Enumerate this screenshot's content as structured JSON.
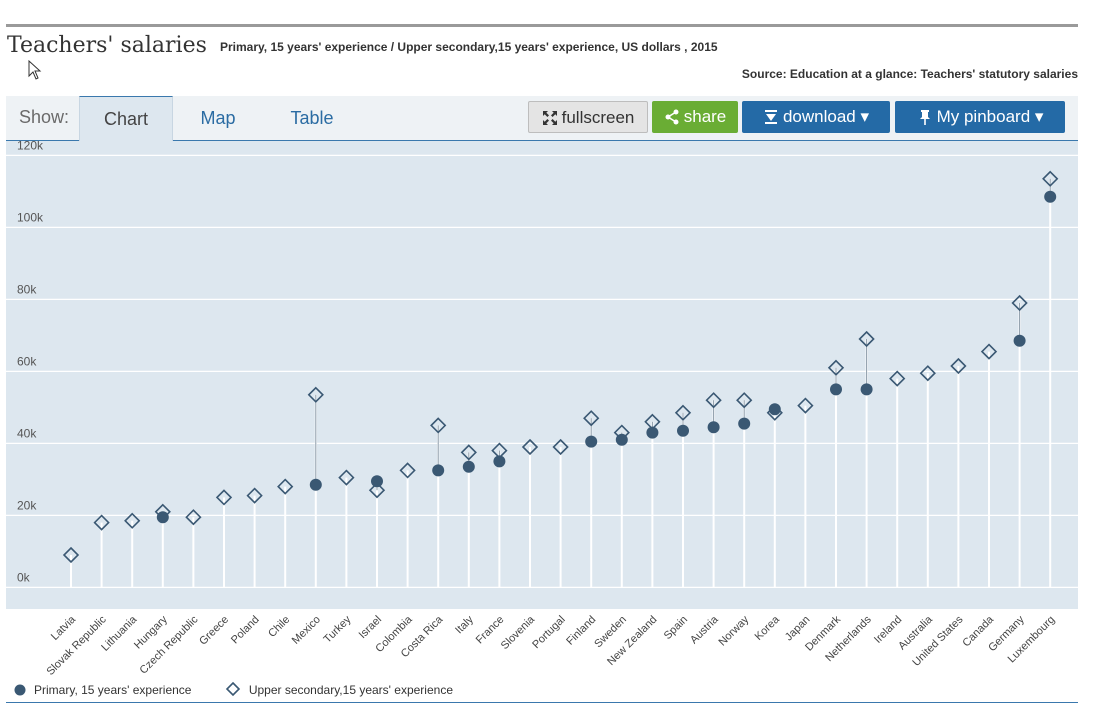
{
  "header": {
    "title": "Teachers' salaries",
    "subtitle": "Primary, 15 years' experience / Upper secondary,15 years' experience, US dollars , 2015",
    "source": "Source: Education at a glance: Teachers' statutory salaries"
  },
  "toolbar": {
    "show_label": "Show:",
    "tabs": [
      {
        "label": "Chart",
        "active": true
      },
      {
        "label": "Map",
        "active": false
      },
      {
        "label": "Table",
        "active": false
      }
    ],
    "fullscreen_label": "fullscreen",
    "share_label": "share",
    "download_label": "download ▾",
    "pinboard_label": "My pinboard ▾",
    "fullscreen_icon": "expand-arrows-icon",
    "share_icon": "share-icon",
    "download_icon": "download-icon",
    "pinboard_icon": "pin-icon"
  },
  "colors": {
    "plot_background": "#dde7ef",
    "gridline": "#ffffff",
    "primary_marker": "#3a5873",
    "upper_secondary_marker": "#3a5873",
    "tab_link": "#2b6ca3",
    "share_button": "#6aad34",
    "download_button": "#246aa6"
  },
  "chart_data": {
    "type": "scatter",
    "title": "Teachers' salaries",
    "subtitle": "Primary, 15 years' experience / Upper secondary,15 years' experience, US dollars , 2015",
    "xlabel": "",
    "ylabel": "",
    "ylim": [
      -6000,
      124000
    ],
    "y_ticks": [
      0,
      20000,
      40000,
      60000,
      80000,
      100000,
      120000
    ],
    "y_tick_labels": [
      "0k",
      "20k",
      "40k",
      "60k",
      "80k",
      "100k",
      "120k"
    ],
    "grid": true,
    "legend_position": "bottom-left",
    "categories": [
      "Latvia",
      "Slovak Republic",
      "Lithuania",
      "Hungary",
      "Czech Republic",
      "Greece",
      "Poland",
      "Chile",
      "Mexico",
      "Turkey",
      "Israel",
      "Colombia",
      "Costa Rica",
      "Italy",
      "France",
      "Slovenia",
      "Portugal",
      "Finland",
      "Sweden",
      "New Zealand",
      "Spain",
      "Austria",
      "Norway",
      "Korea",
      "Japan",
      "Denmark",
      "Netherlands",
      "Ireland",
      "Australia",
      "United States",
      "Canada",
      "Germany",
      "Luxembourg"
    ],
    "series": [
      {
        "name": "Primary, 15 years' experience",
        "marker": "circle",
        "values": [
          null,
          null,
          null,
          19500,
          null,
          null,
          null,
          null,
          28500,
          null,
          29500,
          null,
          32500,
          33500,
          35000,
          null,
          null,
          40500,
          41000,
          43000,
          43500,
          44500,
          45500,
          49500,
          null,
          55000,
          55000,
          null,
          null,
          null,
          null,
          68500,
          108500
        ]
      },
      {
        "name": "Upper secondary,15 years' experience",
        "marker": "diamond",
        "values": [
          9000,
          18000,
          18500,
          21000,
          19500,
          25000,
          25500,
          28000,
          53500,
          30500,
          27000,
          32500,
          45000,
          37500,
          38000,
          39000,
          39000,
          47000,
          43000,
          46000,
          48500,
          52000,
          52000,
          48500,
          50500,
          61000,
          69000,
          58000,
          59500,
          61500,
          65500,
          79000,
          113500
        ]
      }
    ]
  },
  "legend": {
    "primary_label": "Primary, 15 years' experience",
    "upper_label": "Upper secondary,15 years' experience"
  }
}
